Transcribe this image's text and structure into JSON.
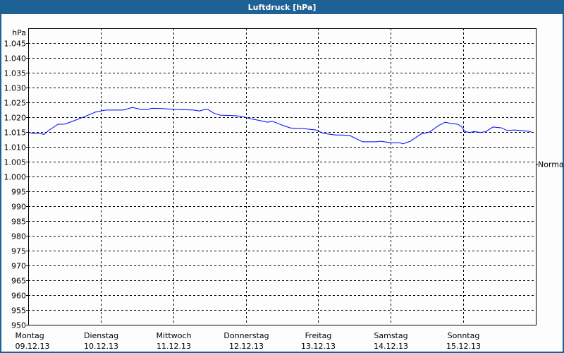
{
  "window": {
    "title": "Luftdruck [hPa]"
  },
  "chart_data": {
    "type": "line",
    "title": "Luftdruck [hPa]",
    "ylabel": "hPa",
    "ylim": [
      950,
      1050
    ],
    "yticks": [
      950,
      955,
      960,
      965,
      970,
      975,
      980,
      985,
      990,
      995,
      1000,
      1005,
      1010,
      1015,
      1020,
      1025,
      1030,
      1035,
      1040,
      1045
    ],
    "ytick_labels": [
      "950",
      "955",
      "960",
      "965",
      "970",
      "975",
      "980",
      "985",
      "990",
      "995",
      "1.000",
      "1.005",
      "1.010",
      "1.015",
      "1.020",
      "1.025",
      "1.030",
      "1.035",
      "1.040",
      "1.045"
    ],
    "xlim": [
      "09.12.13 00:00",
      "16.12.13 00:00"
    ],
    "xticks": [
      {
        "day": "Montag",
        "date": "09.12.13"
      },
      {
        "day": "Dienstag",
        "date": "10.12.13"
      },
      {
        "day": "Mittwoch",
        "date": "11.12.13"
      },
      {
        "day": "Donnerstag",
        "date": "12.12.13"
      },
      {
        "day": "Freitag",
        "date": "13.12.13"
      },
      {
        "day": "Samstag",
        "date": "14.12.13"
      },
      {
        "day": "Sonntag",
        "date": "15.12.13"
      }
    ],
    "grid": true,
    "reference_line": {
      "label": "Normal",
      "value": 1004.3
    },
    "line_color": "#0000ff",
    "series": [
      {
        "points": [
          [
            "09.12.13 00:00",
            1014.8
          ],
          [
            "09.12.13 02:20",
            1014.5
          ],
          [
            "09.12.13 03:30",
            1014.6
          ],
          [
            "09.12.13 05:10",
            1014.2
          ],
          [
            "09.12.13 07:00",
            1015.7
          ],
          [
            "09.12.13 09:50",
            1017.6
          ],
          [
            "09.12.13 12:10",
            1017.7
          ],
          [
            "09.12.13 15:10",
            1018.8
          ],
          [
            "09.12.13 18:40",
            1020.2
          ],
          [
            "09.12.13 22:10",
            1021.7
          ],
          [
            "10.12.13 01:40",
            1022.4
          ],
          [
            "10.12.13 07:30",
            1022.4
          ],
          [
            "10.12.13 10:30",
            1023.3
          ],
          [
            "10.12.13 13:20",
            1022.6
          ],
          [
            "10.12.13 15:40",
            1022.6
          ],
          [
            "10.12.13 16:50",
            1023.0
          ],
          [
            "10.12.13 20:20",
            1022.9
          ],
          [
            "11.12.13 00:50",
            1022.6
          ],
          [
            "11.12.13 06:50",
            1022.4
          ],
          [
            "11.12.13 08:40",
            1022.1
          ],
          [
            "11.12.13 10:20",
            1022.6
          ],
          [
            "11.12.13 11:30",
            1022.6
          ],
          [
            "11.12.13 13:20",
            1021.4
          ],
          [
            "11.12.13 15:30",
            1020.7
          ],
          [
            "11.12.13 20:40",
            1020.5
          ],
          [
            "11.12.13 23:00",
            1020.2
          ],
          [
            "12.12.13 01:30",
            1019.5
          ],
          [
            "12.12.13 05:00",
            1018.8
          ],
          [
            "12.12.13 07:10",
            1018.3
          ],
          [
            "12.12.13 08:50",
            1018.6
          ],
          [
            "12.12.13 10:40",
            1017.9
          ],
          [
            "12.12.13 11:50",
            1017.4
          ],
          [
            "12.12.13 14:40",
            1016.4
          ],
          [
            "12.12.13 16:30",
            1016.2
          ],
          [
            "12.12.13 18:50",
            1016.2
          ],
          [
            "12.12.13 23:10",
            1015.7
          ],
          [
            "13.12.13 01:50",
            1014.5
          ],
          [
            "13.12.13 05:50",
            1014.0
          ],
          [
            "13.12.13 08:10",
            1014.0
          ],
          [
            "13.12.13 10:30",
            1013.8
          ],
          [
            "13.12.13 14:40",
            1011.7
          ],
          [
            "13.12.13 19:20",
            1011.7
          ],
          [
            "13.12.13 20:30",
            1011.9
          ],
          [
            "14.12.13 00:00",
            1011.4
          ],
          [
            "14.12.13 03:00",
            1011.4
          ],
          [
            "14.12.13 04:00",
            1011.0
          ],
          [
            "14.12.13 06:30",
            1011.9
          ],
          [
            "14.12.13 10:00",
            1014.3
          ],
          [
            "14.12.13 12:50",
            1015.0
          ],
          [
            "14.12.13 15:40",
            1017.1
          ],
          [
            "14.12.13 18:00",
            1018.3
          ],
          [
            "14.12.13 19:50",
            1017.9
          ],
          [
            "14.12.13 22:10",
            1017.6
          ],
          [
            "14.12.13 23:20",
            1016.9
          ],
          [
            "15.12.13 00:30",
            1015.2
          ],
          [
            "15.12.13 02:10",
            1014.8
          ],
          [
            "15.12.13 03:30",
            1015.2
          ],
          [
            "15.12.13 05:50",
            1014.8
          ],
          [
            "15.12.13 07:30",
            1015.2
          ],
          [
            "15.12.13 09:50",
            1016.7
          ],
          [
            "15.12.13 12:40",
            1016.4
          ],
          [
            "15.12.13 14:30",
            1015.5
          ],
          [
            "15.12.13 16:50",
            1015.7
          ],
          [
            "15.12.13 19:10",
            1015.5
          ],
          [
            "15.12.13 22:10",
            1015.2
          ],
          [
            "15.12.13 22:50",
            1014.8
          ]
        ]
      }
    ]
  }
}
